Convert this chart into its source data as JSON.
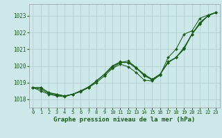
{
  "title": "Graphe pression niveau de la mer (hPa)",
  "background_color": "#cce8e8",
  "grid_color": "#aacccc",
  "line_color": "#1a5c1a",
  "marker_color": "#1a5c1a",
  "xlim": [
    -0.5,
    23.5
  ],
  "ylim": [
    1017.5,
    1023.7
  ],
  "yticks": [
    1018,
    1019,
    1020,
    1021,
    1022,
    1023
  ],
  "xticks": [
    0,
    1,
    2,
    3,
    4,
    5,
    6,
    7,
    8,
    9,
    10,
    11,
    12,
    13,
    14,
    15,
    16,
    17,
    18,
    19,
    20,
    21,
    22,
    23
  ],
  "series": [
    [
      1018.7,
      1018.7,
      1018.4,
      1018.3,
      1018.2,
      1018.3,
      1018.5,
      1018.7,
      1019.1,
      1019.5,
      1019.9,
      1020.2,
      1020.3,
      1019.9,
      1019.4,
      1019.2,
      1019.5,
      1020.2,
      1020.5,
      1021.0,
      1021.9,
      1022.5,
      1023.0,
      1023.2
    ],
    [
      1018.7,
      1018.7,
      1018.4,
      1018.3,
      1018.2,
      1018.3,
      1018.5,
      1018.7,
      1019.1,
      1019.5,
      1020.0,
      1020.2,
      1020.2,
      1019.9,
      1019.5,
      1019.2,
      1019.5,
      1020.2,
      1020.5,
      1021.1,
      1021.9,
      1022.6,
      1023.0,
      1023.2
    ],
    [
      1018.7,
      1018.6,
      1018.35,
      1018.25,
      1018.2,
      1018.3,
      1018.5,
      1018.75,
      1019.1,
      1019.5,
      1020.0,
      1020.25,
      1020.2,
      1019.85,
      1019.45,
      1019.15,
      1019.5,
      1020.25,
      1020.5,
      1021.05,
      1021.9,
      1022.55,
      1023.0,
      1023.2
    ],
    [
      1018.7,
      1018.5,
      1018.3,
      1018.2,
      1018.15,
      1018.3,
      1018.45,
      1018.7,
      1019.0,
      1019.4,
      1019.85,
      1020.1,
      1019.95,
      1019.6,
      1019.15,
      1019.1,
      1019.45,
      1020.5,
      1021.0,
      1021.9,
      1022.1,
      1022.85,
      1023.05,
      1023.2
    ]
  ]
}
